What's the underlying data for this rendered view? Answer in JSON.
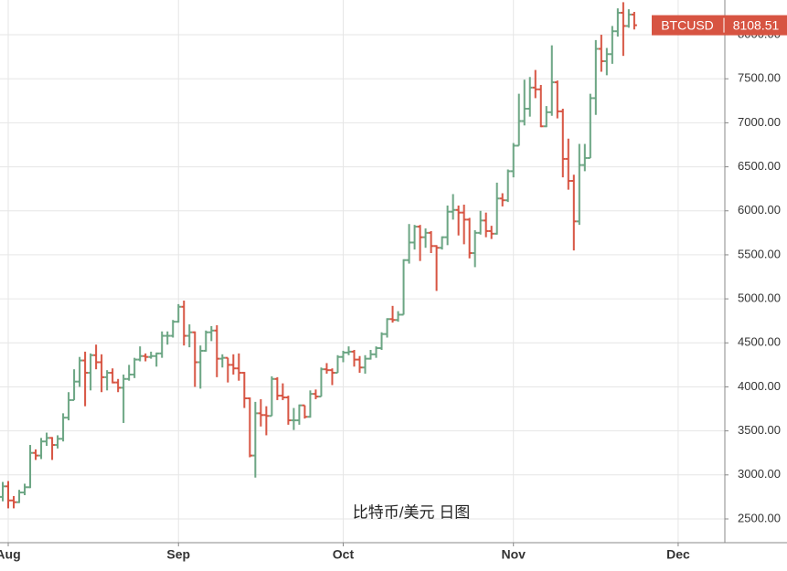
{
  "chart_data": {
    "type": "ohlc",
    "symbol": "BTCUSD",
    "last_price": 8108.51,
    "watermark": "比特币/美元 日图",
    "up_color": "#6ba583",
    "down_color": "#d75442",
    "grid": true,
    "ylim": [
      2230,
      8395
    ],
    "yticks": [
      {
        "value": 2500,
        "label": "2500.00"
      },
      {
        "value": 3000,
        "label": "3000.00"
      },
      {
        "value": 3500,
        "label": "3500.00"
      },
      {
        "value": 4000,
        "label": "4000.00"
      },
      {
        "value": 4500,
        "label": "4500.00"
      },
      {
        "value": 5000,
        "label": "5000.00"
      },
      {
        "value": 5500,
        "label": "5500.00"
      },
      {
        "value": 6000,
        "label": "6000.00"
      },
      {
        "value": 6500,
        "label": "6500.00"
      },
      {
        "value": 7000,
        "label": "7000.00"
      },
      {
        "value": 7500,
        "label": "7500.00"
      },
      {
        "value": 8000,
        "label": "8000.00"
      }
    ],
    "categories": [
      null,
      "Aug",
      null,
      null,
      null,
      null,
      null,
      null,
      null,
      null,
      null,
      null,
      null,
      null,
      null,
      null,
      null,
      null,
      null,
      null,
      null,
      null,
      null,
      null,
      null,
      null,
      null,
      null,
      null,
      null,
      null,
      null,
      "Sep",
      null,
      null,
      null,
      null,
      null,
      null,
      null,
      null,
      null,
      null,
      null,
      null,
      null,
      null,
      null,
      null,
      null,
      null,
      null,
      null,
      null,
      null,
      null,
      null,
      null,
      null,
      null,
      null,
      null,
      "Oct",
      null,
      null,
      null,
      null,
      null,
      null,
      null,
      null,
      null,
      null,
      null,
      null,
      null,
      null,
      null,
      null,
      null,
      null,
      null,
      null,
      null,
      null,
      null,
      null,
      null,
      null,
      null,
      null,
      null,
      null,
      "Nov",
      null,
      null,
      null,
      null,
      null,
      null,
      null,
      null,
      null,
      null,
      null,
      null,
      null,
      null,
      null,
      null,
      null,
      null,
      null,
      null,
      null,
      null,
      null,
      null,
      null,
      null,
      null,
      null,
      null,
      "Dec",
      null,
      null,
      null,
      null,
      null,
      null,
      null,
      null
    ],
    "open": [
      2750,
      2870,
      2710,
      2690,
      2800,
      2860,
      3250,
      3220,
      3380,
      3420,
      3340,
      3410,
      3650,
      3850,
      4060,
      4300,
      4160,
      4360,
      4280,
      4110,
      4160,
      4050,
      3990,
      4090,
      4140,
      4310,
      4350,
      4340,
      4350,
      4380,
      4580,
      4580,
      4740,
      4910,
      4580,
      4620,
      4280,
      4410,
      4620,
      4640,
      4320,
      4330,
      4250,
      4210,
      4160,
      3870,
      3220,
      3700,
      3680,
      3670,
      4090,
      3900,
      3880,
      3620,
      3620,
      3790,
      3660,
      3920,
      3890,
      4200,
      4190,
      4160,
      4340,
      4390,
      4400,
      4310,
      4220,
      4320,
      4370,
      4440,
      4600,
      4770,
      4760,
      4820,
      5440,
      5640,
      5820,
      5700,
      5750,
      5600,
      5580,
      5700,
      5990,
      6010,
      5980,
      5900,
      5520,
      5750,
      5890,
      5770,
      5740,
      6140,
      6120,
      6450,
      6740,
      7020,
      7160,
      7400,
      7380,
      6960,
      7120,
      7460,
      7130,
      6590,
      6340,
      5880,
      6520,
      6600,
      7280,
      7840,
      7700,
      7780,
      8040,
      8250,
      8100,
      8230,
      null,
      null,
      null,
      null,
      null,
      null,
      null,
      null,
      null,
      null,
      null,
      null,
      null,
      null,
      null,
      null
    ],
    "high": [
      2920,
      2930,
      2760,
      2830,
      2900,
      3340,
      3290,
      3420,
      3480,
      3430,
      3450,
      3700,
      3940,
      4200,
      4340,
      4400,
      4380,
      4480,
      4370,
      4190,
      4210,
      4090,
      4140,
      4250,
      4330,
      4460,
      4380,
      4400,
      4390,
      4630,
      4630,
      4760,
      4940,
      4980,
      4710,
      4630,
      4470,
      4640,
      4690,
      4700,
      4370,
      4330,
      4370,
      4380,
      4170,
      3880,
      3830,
      3860,
      3780,
      4120,
      4110,
      4040,
      3900,
      3760,
      3800,
      3790,
      3960,
      3970,
      4220,
      4270,
      4210,
      4360,
      4410,
      4460,
      4420,
      4350,
      4360,
      4420,
      4460,
      4620,
      4780,
      4920,
      4860,
      5450,
      5850,
      5840,
      5840,
      5800,
      5770,
      5610,
      5710,
      6060,
      6190,
      6060,
      6070,
      5920,
      5780,
      6000,
      5980,
      5830,
      6320,
      6200,
      6470,
      6770,
      7330,
      7490,
      7520,
      7600,
      7430,
      7190,
      7880,
      7480,
      7160,
      6820,
      6410,
      6760,
      6760,
      7330,
      7940,
      8000,
      7850,
      8100,
      8300,
      8370,
      8290,
      8260,
      null,
      null,
      null,
      null,
      null,
      null,
      null,
      null,
      null,
      null,
      null,
      null,
      null,
      null,
      null,
      null
    ],
    "low": [
      2700,
      2620,
      2620,
      2680,
      2770,
      2850,
      3170,
      3180,
      3330,
      3170,
      3300,
      3380,
      3620,
      3850,
      4000,
      3780,
      3960,
      4200,
      3940,
      3960,
      4040,
      3940,
      3590,
      4070,
      4100,
      4290,
      4290,
      4320,
      4230,
      4330,
      4480,
      4560,
      4730,
      4470,
      4450,
      4000,
      3980,
      4400,
      4520,
      4110,
      4220,
      4050,
      4140,
      4070,
      3760,
      3200,
      2970,
      3550,
      3450,
      3670,
      3850,
      3850,
      3570,
      3510,
      3570,
      3640,
      3650,
      3860,
      3890,
      4150,
      4020,
      4160,
      4280,
      4360,
      4230,
      4160,
      4150,
      4310,
      4330,
      4420,
      4560,
      4730,
      4740,
      4820,
      5400,
      5560,
      5430,
      5580,
      5520,
      5090,
      5560,
      5610,
      5900,
      5720,
      5620,
      5460,
      5360,
      5730,
      5700,
      5680,
      5730,
      6050,
      6100,
      6380,
      6740,
      6970,
      7070,
      7280,
      6950,
      6950,
      7080,
      7050,
      6380,
      6240,
      5550,
      5840,
      6450,
      6600,
      7090,
      7580,
      7540,
      7670,
      7980,
      7760,
      8080,
      8060,
      null,
      null,
      null,
      null,
      null,
      null,
      null,
      null,
      null,
      null,
      null,
      null,
      null,
      null,
      null,
      null
    ],
    "close": [
      2870,
      2710,
      2690,
      2800,
      2860,
      3250,
      3220,
      3380,
      3420,
      3340,
      3410,
      3650,
      3850,
      4060,
      4300,
      4160,
      4360,
      4280,
      4110,
      4160,
      4050,
      3990,
      4090,
      4140,
      4310,
      4350,
      4340,
      4350,
      4380,
      4580,
      4580,
      4740,
      4910,
      4580,
      4620,
      4280,
      4410,
      4620,
      4640,
      4320,
      4330,
      4250,
      4210,
      4160,
      3870,
      3220,
      3700,
      3680,
      3670,
      4090,
      3900,
      3880,
      3620,
      3620,
      3790,
      3660,
      3920,
      3890,
      4200,
      4190,
      4160,
      4340,
      4390,
      4400,
      4310,
      4220,
      4320,
      4370,
      4440,
      4600,
      4770,
      4760,
      4820,
      5440,
      5640,
      5820,
      5700,
      5750,
      5600,
      5580,
      5700,
      5990,
      6010,
      5980,
      5900,
      5520,
      5750,
      5890,
      5770,
      5740,
      6140,
      6120,
      6450,
      6740,
      7020,
      7160,
      7400,
      7380,
      6960,
      7120,
      7460,
      7130,
      6590,
      6340,
      5880,
      6520,
      6600,
      7280,
      7840,
      7700,
      7780,
      8040,
      8250,
      8100,
      8230,
      8108.51,
      null,
      null,
      null,
      null,
      null,
      null,
      null,
      null,
      null,
      null,
      null,
      null,
      null,
      null,
      null,
      null
    ]
  }
}
